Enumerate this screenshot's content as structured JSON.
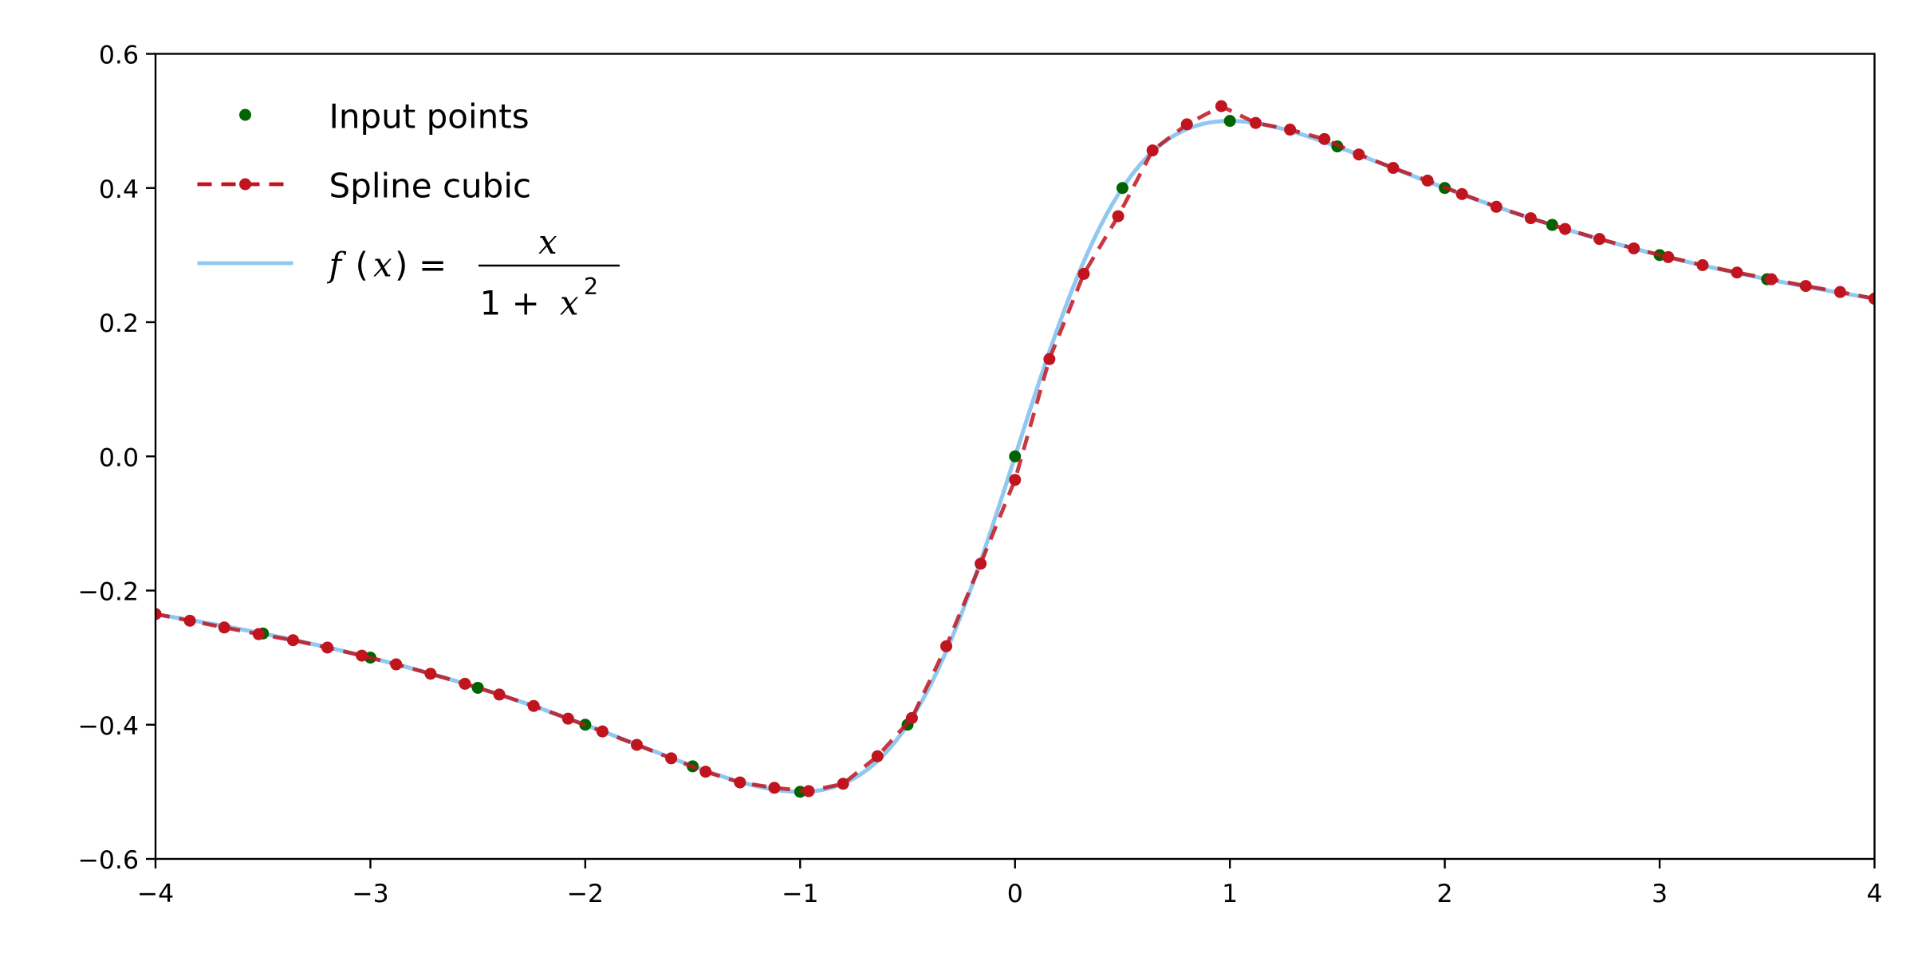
{
  "chart_data": {
    "type": "line",
    "title": "",
    "xlabel": "",
    "ylabel": "",
    "xlim": [
      -4,
      4
    ],
    "ylim": [
      -0.6,
      0.6
    ],
    "grid": false,
    "legend_placement": "upper-left",
    "x_ticks": [
      -4,
      -3,
      -2,
      -1,
      0,
      1,
      2,
      3,
      4
    ],
    "x_tick_labels": [
      "−4",
      "−3",
      "−2",
      "−1",
      "0",
      "1",
      "2",
      "3",
      "4"
    ],
    "y_ticks": [
      -0.6,
      -0.4,
      -0.2,
      0.0,
      0.2,
      0.4,
      0.6
    ],
    "y_tick_labels": [
      "−0.6",
      "−0.4",
      "−0.2",
      "0.0",
      "0.2",
      "0.4",
      "0.6"
    ],
    "series": [
      {
        "name": "Input points",
        "kind": "scatter",
        "color": "#006400",
        "x": [
          -4,
          -3.5,
          -3,
          -2.5,
          -2,
          -1.5,
          -1,
          -0.5,
          0,
          0.5,
          1,
          1.5,
          2,
          2.5,
          3,
          3.5,
          4
        ],
        "y": [
          -0.235,
          -0.264,
          -0.3,
          -0.345,
          -0.4,
          -0.462,
          -0.5,
          -0.4,
          0.0,
          0.4,
          0.5,
          0.462,
          0.4,
          0.345,
          0.3,
          0.264,
          0.235
        ]
      },
      {
        "name": "Spline cubic",
        "kind": "line-markers",
        "color": "#c0141e",
        "dashed": true,
        "x": [
          -4.0,
          -3.84,
          -3.68,
          -3.52,
          -3.36,
          -3.2,
          -3.04,
          -2.88,
          -2.72,
          -2.56,
          -2.4,
          -2.24,
          -2.08,
          -1.92,
          -1.76,
          -1.6,
          -1.44,
          -1.28,
          -1.12,
          -0.96,
          -0.8,
          -0.64,
          -0.48,
          -0.32,
          -0.16,
          0.0,
          0.16,
          0.32,
          0.48,
          0.64,
          0.8,
          0.96,
          1.12,
          1.28,
          1.44,
          1.6,
          1.76,
          1.92,
          2.08,
          2.24,
          2.4,
          2.56,
          2.72,
          2.88,
          3.04,
          3.2,
          3.36,
          3.52,
          3.68,
          3.84,
          4.0
        ],
        "y": [
          -0.235,
          -0.245,
          -0.255,
          -0.265,
          -0.274,
          -0.285,
          -0.297,
          -0.31,
          -0.324,
          -0.339,
          -0.355,
          -0.372,
          -0.391,
          -0.41,
          -0.43,
          -0.45,
          -0.47,
          -0.486,
          -0.494,
          -0.499,
          -0.488,
          -0.447,
          -0.39,
          -0.283,
          -0.16,
          -0.035,
          0.145,
          0.272,
          0.358,
          0.456,
          0.495,
          0.522,
          0.497,
          0.487,
          0.473,
          0.45,
          0.43,
          0.411,
          0.391,
          0.372,
          0.355,
          0.339,
          0.324,
          0.31,
          0.297,
          0.285,
          0.274,
          0.264,
          0.254,
          0.245,
          0.235
        ]
      },
      {
        "name": "f (x) = x / (1 + x²)",
        "kind": "line",
        "color": "#90c8f0",
        "function": "x/(1+x^2)"
      }
    ]
  },
  "legend": {
    "input_points": "Input points",
    "spline_cubic": "Spline cubic",
    "formula_f": "f",
    "formula_paren_open": "(",
    "formula_x": "x",
    "formula_paren_close": ")",
    "formula_eq": "=",
    "formula_numerator": "x",
    "formula_den_1": "1 + ",
    "formula_den_x": "x",
    "formula_den_exp": "2"
  }
}
